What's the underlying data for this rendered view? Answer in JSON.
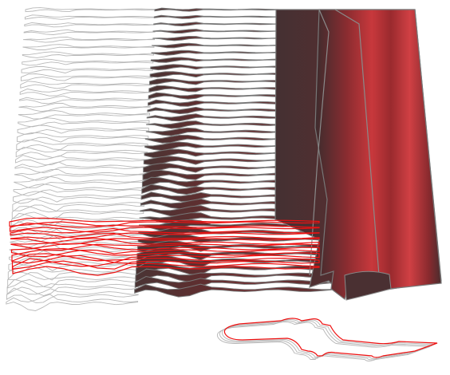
{
  "figure": {
    "colors": {
      "background": "#ffffff",
      "outline": "#b8b8b8",
      "slice_edge": "#777777",
      "slice_fill_dark": "#4a3434",
      "slice_fill_mid": "#6e2a2c",
      "surface_light": "#c8383c",
      "surface_dark": "#3d2c2e",
      "highlight": "#ee1111"
    },
    "highlighted_layer_range": [
      22,
      26
    ]
  }
}
